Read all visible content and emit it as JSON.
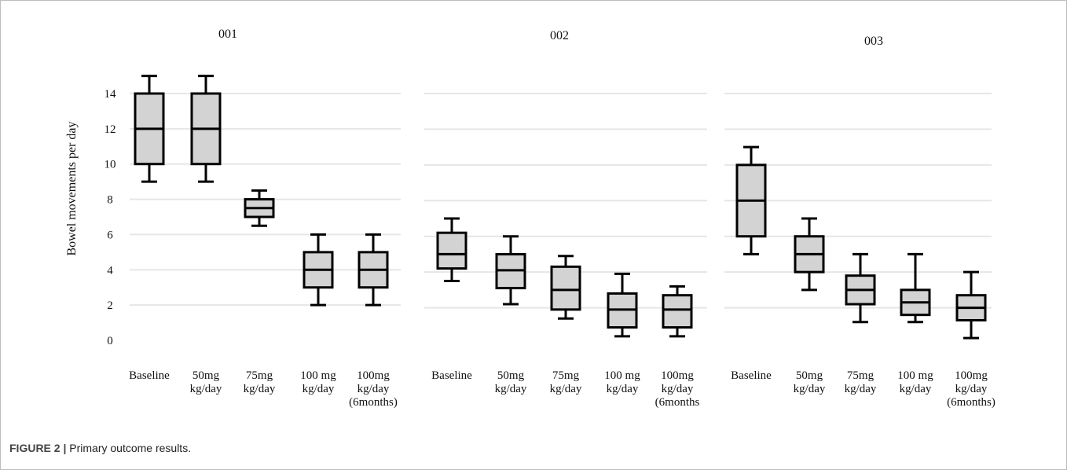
{
  "chart_data": {
    "type": "box",
    "ylabel": "Bowel movements per day",
    "yticks": [
      0,
      2,
      4,
      6,
      8,
      10,
      12,
      14
    ],
    "grid": true,
    "panels": [
      {
        "title": "001",
        "categories": [
          [
            "Baseline"
          ],
          [
            "50mg",
            "kg/day"
          ],
          [
            "75mg",
            "kg/day"
          ],
          [
            "100 mg",
            "kg/day"
          ],
          [
            "100mg",
            "kg/day",
            "(6months)"
          ]
        ],
        "boxes": [
          {
            "min": 9,
            "q1": 10,
            "median": 12,
            "q3": 14,
            "max": 15
          },
          {
            "min": 9,
            "q1": 10,
            "median": 12,
            "q3": 14,
            "max": 15
          },
          {
            "min": 6.5,
            "q1": 7,
            "median": 7.5,
            "q3": 8,
            "max": 8.5
          },
          {
            "min": 2,
            "q1": 3,
            "median": 4,
            "q3": 5,
            "max": 6
          },
          {
            "min": 2,
            "q1": 3,
            "median": 4,
            "q3": 5,
            "max": 6
          }
        ]
      },
      {
        "title": "002",
        "categories": [
          [
            "Baseline"
          ],
          [
            "50mg",
            "kg/day"
          ],
          [
            "75mg",
            "kg/day"
          ],
          [
            "100 mg",
            "kg/day"
          ],
          [
            "100mg",
            "kg/day",
            "(6months"
          ]
        ],
        "boxes": [
          {
            "min": 3.5,
            "q1": 4.2,
            "median": 5,
            "q3": 6.2,
            "max": 7
          },
          {
            "min": 2.2,
            "q1": 3.1,
            "median": 4.1,
            "q3": 5,
            "max": 6
          },
          {
            "min": 1.4,
            "q1": 1.9,
            "median": 3,
            "q3": 4.3,
            "max": 4.9
          },
          {
            "min": 0.4,
            "q1": 0.9,
            "median": 1.9,
            "q3": 2.8,
            "max": 3.9
          },
          {
            "min": 0.4,
            "q1": 0.9,
            "median": 1.9,
            "q3": 2.7,
            "max": 3.2
          }
        ]
      },
      {
        "title": "003",
        "categories": [
          [
            "Baseline"
          ],
          [
            "50mg",
            "kg/day"
          ],
          [
            "75mg",
            "kg/day"
          ],
          [
            "100 mg",
            "kg/day"
          ],
          [
            "100mg",
            "kg/day",
            "(6months)"
          ]
        ],
        "boxes": [
          {
            "min": 5,
            "q1": 6,
            "median": 8,
            "q3": 10,
            "max": 11
          },
          {
            "min": 3,
            "q1": 4,
            "median": 5,
            "q3": 6,
            "max": 7
          },
          {
            "min": 1.2,
            "q1": 2.2,
            "median": 3,
            "q3": 3.8,
            "max": 5
          },
          {
            "min": 1.2,
            "q1": 1.6,
            "median": 2.3,
            "q3": 3,
            "max": 5
          },
          {
            "min": 0.3,
            "q1": 1.3,
            "median": 2,
            "q3": 2.7,
            "max": 4
          }
        ]
      }
    ]
  },
  "caption": {
    "lead": "FIGURE 2 |",
    "text": " Primary outcome results."
  },
  "colors": {
    "box_fill": "#d3d3d3",
    "box_stroke": "#000000",
    "grid": "#e6e6e6"
  }
}
